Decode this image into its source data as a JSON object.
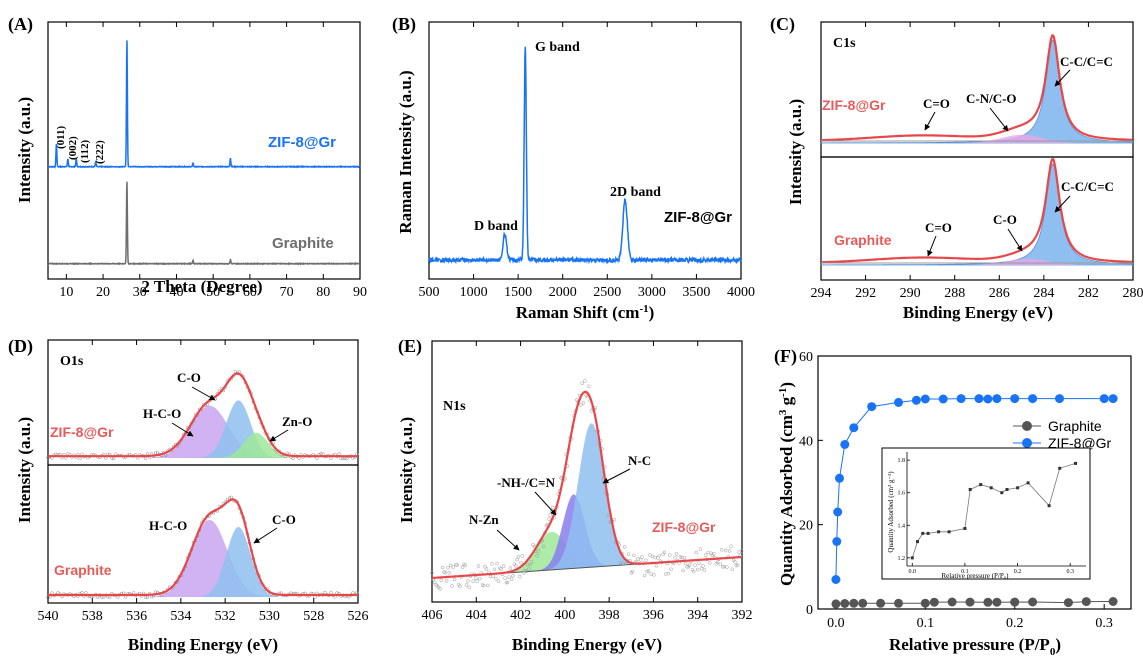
{
  "colors": {
    "blue": "#1874f5",
    "gray": "#6e6e6e",
    "red": "#e8474a",
    "red_label": "#e85a5a",
    "c_o_fill": "#8fbff0",
    "green_fill": "#9fe89a",
    "purple_fill": "#c9a4f0",
    "violet_fill": "#8a7cf0",
    "pink_fill": "#e8a8e8"
  },
  "panels": {
    "A": {
      "label": "(A)",
      "xlabel": "2 Theta (Degree)",
      "ylabel": "Intensity (a.u.)",
      "xticks": [
        "10",
        "20",
        "30",
        "40",
        "50",
        "60",
        "70",
        "80",
        "90"
      ],
      "series_top": "ZIF-8@Gr",
      "series_bottom": "Graphite",
      "peaks": [
        "(011)",
        "(002)",
        "(112)",
        "(222)"
      ]
    },
    "B": {
      "label": "(B)",
      "xlabel": "Raman Shift (cm",
      "xlabel_sup": "-1",
      "xlabel_end": ")",
      "ylabel": "Raman Intensity (a.u.)",
      "xticks": [
        "500",
        "1000",
        "1500",
        "2000",
        "2500",
        "3000",
        "3500",
        "4000"
      ],
      "series": "ZIF-8@Gr",
      "d_band": "D band",
      "g_band": "G band",
      "band_2d": "2D band"
    },
    "C": {
      "label": "(C)",
      "core": "C1s",
      "xlabel": "Binding Energy (eV)",
      "ylabel": "Intensity (a.u.)",
      "xticks": [
        "294",
        "292",
        "290",
        "288",
        "286",
        "284",
        "282",
        "280"
      ],
      "top_series": "ZIF-8@Gr",
      "bottom_series": "Graphite",
      "co": "C=O",
      "cn": "C-N/C-O",
      "cc_top": "C-C/C=C",
      "co2": "C=O",
      "c_o": "C-O",
      "cc_bottom": "C-C/C=C"
    },
    "D": {
      "label": "(D)",
      "core": "O1s",
      "xlabel": "Binding Energy (eV)",
      "ylabel": "Intensity (a.u.)",
      "xticks": [
        "540",
        "538",
        "536",
        "534",
        "532",
        "530",
        "528",
        "526"
      ],
      "top_series": "ZIF-8@Gr",
      "bottom_series": "Graphite",
      "top_co": "C-O",
      "top_hco": "H-C-O",
      "top_zno": "Zn-O",
      "bot_hco": "H-C-O",
      "bot_co": "C-O"
    },
    "E": {
      "label": "(E)",
      "core": "N1s",
      "xlabel": "Binding Energy (eV)",
      "ylabel": "Intensity (a.u.)",
      "xticks": [
        "406",
        "404",
        "402",
        "400",
        "398",
        "396",
        "394",
        "392"
      ],
      "series": "ZIF-8@Gr",
      "nzn": "N-Zn",
      "nh": "-NH-/C=N",
      "nc": "N-C"
    },
    "F": {
      "label": "(F)",
      "xlabel": "Relative pressure (P/P",
      "xlabel_sub": "0",
      "xlabel_end": ")",
      "ylabel": "Quantity Adsorbed (cm",
      "ylabel_sup": "3",
      "ylabel_g": " g",
      "ylabel_sup2": "-1",
      "ylabel_end": ")",
      "xticks": [
        "0.0",
        "0.1",
        "0.2",
        "0.3"
      ],
      "yticks": [
        "0",
        "20",
        "40",
        "60"
      ],
      "legend": [
        "Graphite",
        "ZIF-8@Gr"
      ],
      "inset_ylabel": "Quantity Adsorbed (cm³ g⁻¹)",
      "inset_xlabel": "Relative pressure (P/P₀)",
      "inset_xticks": [
        "0.0",
        "0.1",
        "0.2",
        "0.3"
      ],
      "inset_yticks": [
        "1.2",
        "1.4",
        "1.6",
        "1.8"
      ]
    }
  },
  "chart_data": [
    {
      "panel": "A",
      "type": "line",
      "xlabel": "2 Theta (Degree)",
      "ylabel": "Intensity (a.u.)",
      "xlim": [
        5,
        90
      ],
      "series": [
        {
          "name": "ZIF-8@Gr",
          "peaks_x": [
            7.3,
            10.4,
            12.7,
            18.0,
            26.5,
            44.5,
            54.7
          ],
          "peaks_h": [
            0.18,
            0.06,
            0.06,
            0.04,
            1.0,
            0.03,
            0.07
          ]
        },
        {
          "name": "Graphite",
          "peaks_x": [
            26.5,
            44.5,
            54.7
          ],
          "peaks_h": [
            1.0,
            0.04,
            0.05
          ]
        }
      ]
    },
    {
      "panel": "B",
      "type": "line",
      "xlim": [
        500,
        4000
      ],
      "series": [
        {
          "name": "ZIF-8@Gr",
          "peaks_x": [
            1350,
            1580,
            2700
          ],
          "peaks_h": [
            0.12,
            1.0,
            0.28
          ]
        }
      ]
    },
    {
      "panel": "C",
      "type": "line",
      "xlim": [
        294,
        280
      ],
      "components": [
        "C=O",
        "C-N/C-O",
        "C-C/C=C",
        "C-O"
      ],
      "peak_x": 283.6
    },
    {
      "panel": "D",
      "type": "line",
      "xlim": [
        540,
        526
      ],
      "components": [
        "C-O",
        "H-C-O",
        "Zn-O"
      ],
      "peaks_x": {
        "H-C-O": 532.7,
        "C-O": 531.4,
        "Zn-O": 530.6
      }
    },
    {
      "panel": "E",
      "type": "line",
      "xlim": [
        406,
        392
      ],
      "components": [
        "N-Zn",
        "-NH-/C=N",
        "N-C"
      ],
      "peaks_x": {
        "N-Zn": 400.6,
        "-NH-/C=N": 399.6,
        "N-C": 398.8
      }
    },
    {
      "panel": "F",
      "type": "scatter",
      "xlabel": "Relative pressure (P/P0)",
      "ylabel": "Quantity Adsorbed (cm3 g-1)",
      "xlim": [
        -0.02,
        0.33
      ],
      "ylim": [
        0,
        60
      ],
      "series": [
        {
          "name": "Graphite",
          "x": [
            0.0,
            0.01,
            0.02,
            0.03,
            0.05,
            0.07,
            0.1,
            0.11,
            0.13,
            0.15,
            0.17,
            0.18,
            0.2,
            0.22,
            0.26,
            0.28,
            0.31
          ],
          "y": [
            1.2,
            1.3,
            1.35,
            1.35,
            1.36,
            1.36,
            1.38,
            1.62,
            1.65,
            1.63,
            1.6,
            1.62,
            1.63,
            1.66,
            1.52,
            1.75,
            1.78
          ]
        },
        {
          "name": "ZIF-8@Gr",
          "x": [
            0.0,
            0.001,
            0.002,
            0.004,
            0.01,
            0.02,
            0.04,
            0.07,
            0.09,
            0.1,
            0.12,
            0.14,
            0.16,
            0.17,
            0.18,
            0.2,
            0.22,
            0.25,
            0.3,
            0.31
          ],
          "y": [
            7,
            16,
            23,
            31,
            39,
            43,
            48,
            49,
            49.5,
            49.8,
            49.8,
            49.9,
            49.9,
            49.8,
            49.9,
            49.9,
            49.9,
            49.9,
            49.9,
            49.9
          ]
        }
      ]
    }
  ]
}
